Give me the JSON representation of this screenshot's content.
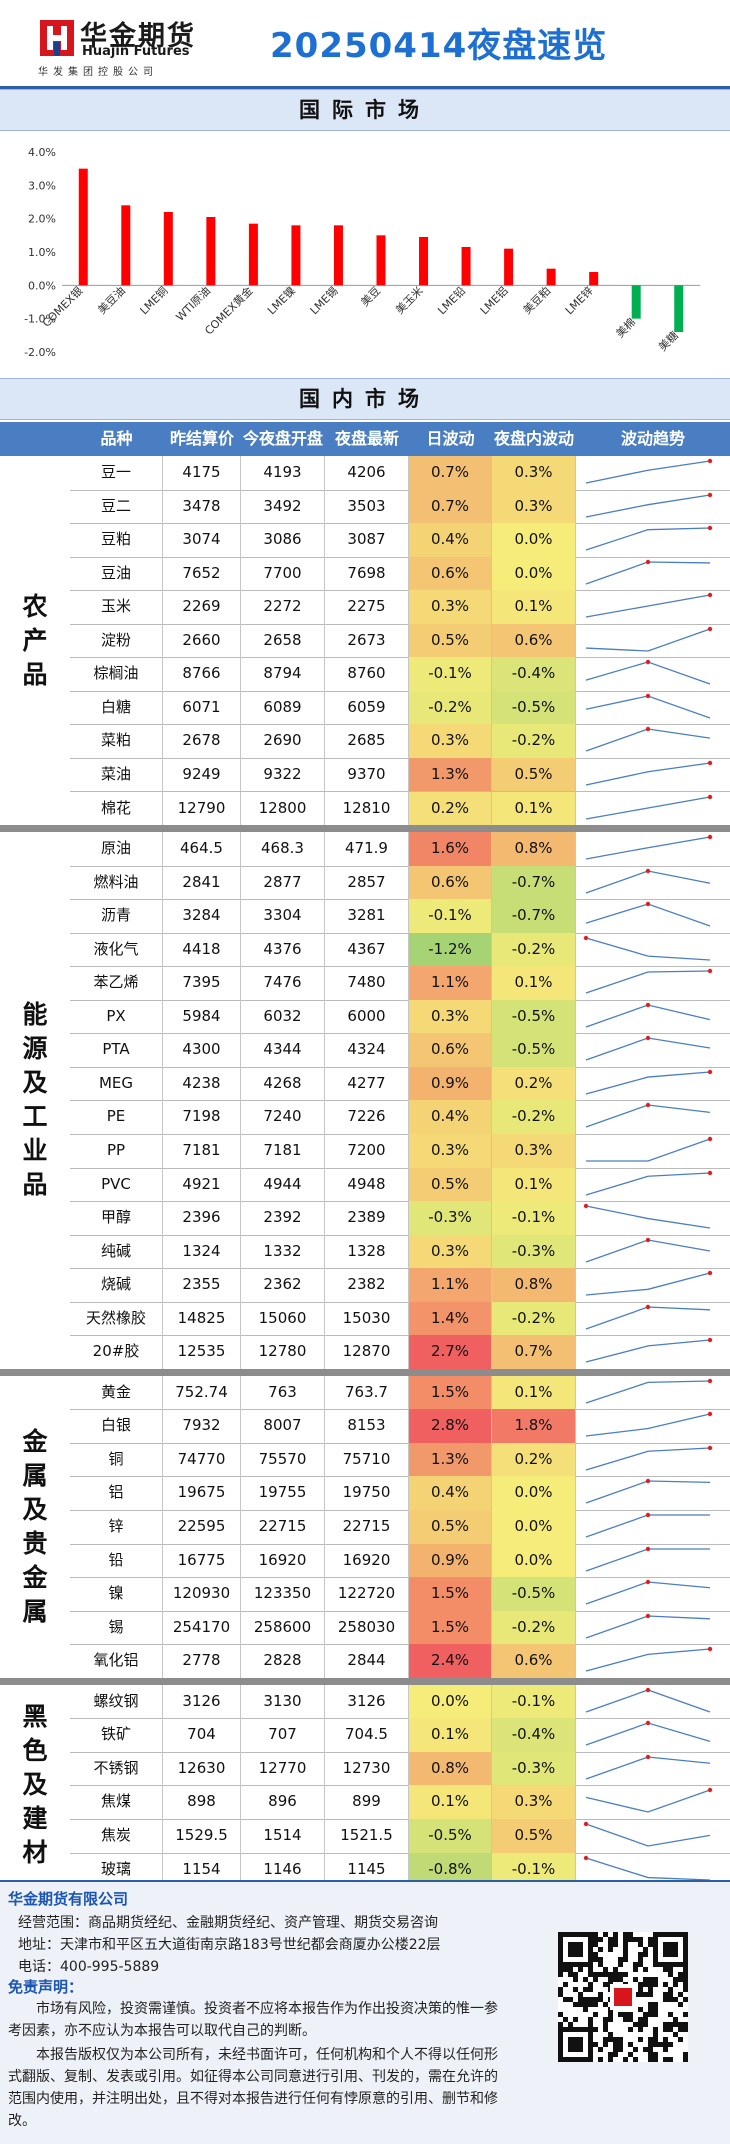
{
  "header": {
    "logo_cn": "华金期货",
    "logo_en": "Huajin Futures",
    "logo_sub": "华发集团控股公司",
    "title": "20250414夜盘速览"
  },
  "sections": {
    "international": "国际市场",
    "domestic": "国内市场"
  },
  "chart_data": {
    "type": "bar",
    "categories": [
      "COMEX银",
      "美豆油",
      "LME铜",
      "WTI原油",
      "COMEX黄金",
      "LME镍",
      "LME锡",
      "美豆",
      "美玉米",
      "LME铅",
      "LME铝",
      "美豆粕",
      "LME锌",
      "美棉",
      "美糖"
    ],
    "values": [
      3.5,
      2.4,
      2.2,
      2.05,
      1.85,
      1.8,
      1.8,
      1.5,
      1.45,
      1.15,
      1.1,
      0.5,
      0.4,
      -1.0,
      -1.4
    ],
    "yticks": [
      "4.0%",
      "3.0%",
      "2.0%",
      "1.0%",
      "0.0%",
      "-1.0%",
      "-2.0%"
    ],
    "ylim": [
      -2.0,
      4.0
    ],
    "colors": {
      "positive": "#ff0000",
      "negative": "#00b050"
    }
  },
  "table": {
    "headers": [
      "品种",
      "昨结算价",
      "今夜盘开盘",
      "夜盘最新",
      "日波动",
      "夜盘内波动",
      "波动趋势"
    ],
    "groups": [
      {
        "label": "农产品",
        "rows": [
          {
            "name": "豆一",
            "prev": "4175",
            "open": "4193",
            "last": "4206",
            "day": "0.7%",
            "night": "0.3%",
            "d": 0.7,
            "n": 0.3,
            "trend": [
              4175,
              4193,
              4206
            ]
          },
          {
            "name": "豆二",
            "prev": "3478",
            "open": "3492",
            "last": "3503",
            "day": "0.7%",
            "night": "0.3%",
            "d": 0.7,
            "n": 0.3,
            "trend": [
              3478,
              3492,
              3503
            ]
          },
          {
            "name": "豆粕",
            "prev": "3074",
            "open": "3086",
            "last": "3087",
            "day": "0.4%",
            "night": "0.0%",
            "d": 0.4,
            "n": 0.0,
            "trend": [
              3074,
              3086,
              3087
            ]
          },
          {
            "name": "豆油",
            "prev": "7652",
            "open": "7700",
            "last": "7698",
            "day": "0.6%",
            "night": "0.0%",
            "d": 0.6,
            "n": 0.0,
            "trend": [
              7652,
              7700,
              7698
            ]
          },
          {
            "name": "玉米",
            "prev": "2269",
            "open": "2272",
            "last": "2275",
            "day": "0.3%",
            "night": "0.1%",
            "d": 0.3,
            "n": 0.1,
            "trend": [
              2269,
              2272,
              2275
            ]
          },
          {
            "name": "淀粉",
            "prev": "2660",
            "open": "2658",
            "last": "2673",
            "day": "0.5%",
            "night": "0.6%",
            "d": 0.5,
            "n": 0.6,
            "trend": [
              2660,
              2658,
              2673
            ]
          },
          {
            "name": "棕榈油",
            "prev": "8766",
            "open": "8794",
            "last": "8760",
            "day": "-0.1%",
            "night": "-0.4%",
            "d": -0.1,
            "n": -0.4,
            "trend": [
              8766,
              8794,
              8760
            ]
          },
          {
            "name": "白糖",
            "prev": "6071",
            "open": "6089",
            "last": "6059",
            "day": "-0.2%",
            "night": "-0.5%",
            "d": -0.2,
            "n": -0.5,
            "trend": [
              6071,
              6089,
              6059
            ]
          },
          {
            "name": "菜粕",
            "prev": "2678",
            "open": "2690",
            "last": "2685",
            "day": "0.3%",
            "night": "-0.2%",
            "d": 0.3,
            "n": -0.2,
            "trend": [
              2678,
              2690,
              2685
            ]
          },
          {
            "name": "菜油",
            "prev": "9249",
            "open": "9322",
            "last": "9370",
            "day": "1.3%",
            "night": "0.5%",
            "d": 1.3,
            "n": 0.5,
            "trend": [
              9249,
              9322,
              9370
            ]
          },
          {
            "name": "棉花",
            "prev": "12790",
            "open": "12800",
            "last": "12810",
            "day": "0.2%",
            "night": "0.1%",
            "d": 0.2,
            "n": 0.1,
            "trend": [
              12790,
              12800,
              12810
            ]
          }
        ]
      },
      {
        "label": "能源及工业品",
        "rows": [
          {
            "name": "原油",
            "prev": "464.5",
            "open": "468.3",
            "last": "471.9",
            "day": "1.6%",
            "night": "0.8%",
            "d": 1.6,
            "n": 0.8,
            "trend": [
              464.5,
              468.3,
              471.9
            ]
          },
          {
            "name": "燃料油",
            "prev": "2841",
            "open": "2877",
            "last": "2857",
            "day": "0.6%",
            "night": "-0.7%",
            "d": 0.6,
            "n": -0.7,
            "trend": [
              2841,
              2877,
              2857
            ]
          },
          {
            "name": "沥青",
            "prev": "3284",
            "open": "3304",
            "last": "3281",
            "day": "-0.1%",
            "night": "-0.7%",
            "d": -0.1,
            "n": -0.7,
            "trend": [
              3284,
              3304,
              3281
            ]
          },
          {
            "name": "液化气",
            "prev": "4418",
            "open": "4376",
            "last": "4367",
            "day": "-1.2%",
            "night": "-0.2%",
            "d": -1.2,
            "n": -0.2,
            "trend": [
              4418,
              4376,
              4367
            ]
          },
          {
            "name": "苯乙烯",
            "prev": "7395",
            "open": "7476",
            "last": "7480",
            "day": "1.1%",
            "night": "0.1%",
            "d": 1.1,
            "n": 0.1,
            "trend": [
              7395,
              7476,
              7480
            ]
          },
          {
            "name": "PX",
            "prev": "5984",
            "open": "6032",
            "last": "6000",
            "day": "0.3%",
            "night": "-0.5%",
            "d": 0.3,
            "n": -0.5,
            "trend": [
              5984,
              6032,
              6000
            ]
          },
          {
            "name": "PTA",
            "prev": "4300",
            "open": "4344",
            "last": "4324",
            "day": "0.6%",
            "night": "-0.5%",
            "d": 0.6,
            "n": -0.5,
            "trend": [
              4300,
              4344,
              4324
            ]
          },
          {
            "name": "MEG",
            "prev": "4238",
            "open": "4268",
            "last": "4277",
            "day": "0.9%",
            "night": "0.2%",
            "d": 0.9,
            "n": 0.2,
            "trend": [
              4238,
              4268,
              4277
            ]
          },
          {
            "name": "PE",
            "prev": "7198",
            "open": "7240",
            "last": "7226",
            "day": "0.4%",
            "night": "-0.2%",
            "d": 0.4,
            "n": -0.2,
            "trend": [
              7198,
              7240,
              7226
            ]
          },
          {
            "name": "PP",
            "prev": "7181",
            "open": "7181",
            "last": "7200",
            "day": "0.3%",
            "night": "0.3%",
            "d": 0.3,
            "n": 0.3,
            "trend": [
              7181,
              7181,
              7200
            ]
          },
          {
            "name": "PVC",
            "prev": "4921",
            "open": "4944",
            "last": "4948",
            "day": "0.5%",
            "night": "0.1%",
            "d": 0.5,
            "n": 0.1,
            "trend": [
              4921,
              4944,
              4948
            ]
          },
          {
            "name": "甲醇",
            "prev": "2396",
            "open": "2392",
            "last": "2389",
            "day": "-0.3%",
            "night": "-0.1%",
            "d": -0.3,
            "n": -0.1,
            "trend": [
              2396,
              2392,
              2389
            ]
          },
          {
            "name": "纯碱",
            "prev": "1324",
            "open": "1332",
            "last": "1328",
            "day": "0.3%",
            "night": "-0.3%",
            "d": 0.3,
            "n": -0.3,
            "trend": [
              1324,
              1332,
              1328
            ]
          },
          {
            "name": "烧碱",
            "prev": "2355",
            "open": "2362",
            "last": "2382",
            "day": "1.1%",
            "night": "0.8%",
            "d": 1.1,
            "n": 0.8,
            "trend": [
              2355,
              2362,
              2382
            ]
          },
          {
            "name": "天然橡胶",
            "prev": "14825",
            "open": "15060",
            "last": "15030",
            "day": "1.4%",
            "night": "-0.2%",
            "d": 1.4,
            "n": -0.2,
            "trend": [
              14825,
              15060,
              15030
            ]
          },
          {
            "name": "20#胶",
            "prev": "12535",
            "open": "12780",
            "last": "12870",
            "day": "2.7%",
            "night": "0.7%",
            "d": 2.7,
            "n": 0.7,
            "trend": [
              12535,
              12780,
              12870
            ]
          }
        ]
      },
      {
        "label": "金属及贵金属",
        "rows": [
          {
            "name": "黄金",
            "prev": "752.74",
            "open": "763",
            "last": "763.7",
            "day": "1.5%",
            "night": "0.1%",
            "d": 1.5,
            "n": 0.1,
            "trend": [
              752.74,
              763,
              763.7
            ]
          },
          {
            "name": "白银",
            "prev": "7932",
            "open": "8007",
            "last": "8153",
            "day": "2.8%",
            "night": "1.8%",
            "d": 2.8,
            "n": 1.8,
            "trend": [
              7932,
              8007,
              8153
            ]
          },
          {
            "name": "铜",
            "prev": "74770",
            "open": "75570",
            "last": "75710",
            "day": "1.3%",
            "night": "0.2%",
            "d": 1.3,
            "n": 0.2,
            "trend": [
              74770,
              75570,
              75710
            ]
          },
          {
            "name": "铝",
            "prev": "19675",
            "open": "19755",
            "last": "19750",
            "day": "0.4%",
            "night": "0.0%",
            "d": 0.4,
            "n": 0.0,
            "trend": [
              19675,
              19755,
              19750
            ]
          },
          {
            "name": "锌",
            "prev": "22595",
            "open": "22715",
            "last": "22715",
            "day": "0.5%",
            "night": "0.0%",
            "d": 0.5,
            "n": 0.0,
            "trend": [
              22595,
              22715,
              22715
            ]
          },
          {
            "name": "铅",
            "prev": "16775",
            "open": "16920",
            "last": "16920",
            "day": "0.9%",
            "night": "0.0%",
            "d": 0.9,
            "n": 0.0,
            "trend": [
              16775,
              16920,
              16920
            ]
          },
          {
            "name": "镍",
            "prev": "120930",
            "open": "123350",
            "last": "122720",
            "day": "1.5%",
            "night": "-0.5%",
            "d": 1.5,
            "n": -0.5,
            "trend": [
              120930,
              123350,
              122720
            ]
          },
          {
            "name": "锡",
            "prev": "254170",
            "open": "258600",
            "last": "258030",
            "day": "1.5%",
            "night": "-0.2%",
            "d": 1.5,
            "n": -0.2,
            "trend": [
              254170,
              258600,
              258030
            ]
          },
          {
            "name": "氧化铝",
            "prev": "2778",
            "open": "2828",
            "last": "2844",
            "day": "2.4%",
            "night": "0.6%",
            "d": 2.4,
            "n": 0.6,
            "trend": [
              2778,
              2828,
              2844
            ]
          }
        ]
      },
      {
        "label": "黑色及建材",
        "rows": [
          {
            "name": "螺纹钢",
            "prev": "3126",
            "open": "3130",
            "last": "3126",
            "day": "0.0%",
            "night": "-0.1%",
            "d": 0.0,
            "n": -0.1,
            "trend": [
              3126,
              3130,
              3126
            ]
          },
          {
            "name": "铁矿",
            "prev": "704",
            "open": "707",
            "last": "704.5",
            "day": "0.1%",
            "night": "-0.4%",
            "d": 0.1,
            "n": -0.4,
            "trend": [
              704,
              707,
              704.5
            ]
          },
          {
            "name": "不锈钢",
            "prev": "12630",
            "open": "12770",
            "last": "12730",
            "day": "0.8%",
            "night": "-0.3%",
            "d": 0.8,
            "n": -0.3,
            "trend": [
              12630,
              12770,
              12730
            ]
          },
          {
            "name": "焦煤",
            "prev": "898",
            "open": "896",
            "last": "899",
            "day": "0.1%",
            "night": "0.3%",
            "d": 0.1,
            "n": 0.3,
            "trend": [
              898,
              896,
              899
            ]
          },
          {
            "name": "焦炭",
            "prev": "1529.5",
            "open": "1514",
            "last": "1521.5",
            "day": "-0.5%",
            "night": "0.5%",
            "d": -0.5,
            "n": 0.5,
            "trend": [
              1529.5,
              1514,
              1521.5
            ]
          },
          {
            "name": "玻璃",
            "prev": "1154",
            "open": "1146",
            "last": "1145",
            "day": "-0.8%",
            "night": "-0.1%",
            "d": -0.8,
            "n": -0.1,
            "trend": [
              1154,
              1146,
              1145
            ]
          }
        ]
      }
    ]
  },
  "footer": {
    "company": "华金期货有限公司",
    "scope": "经营范围：商品期货经纪、金融期货经纪、资产管理、期货交易咨询",
    "address": "地址：天津市和平区五大道街南京路183号世纪都会商厦办公楼22层",
    "phone": "电话：400-995-5889",
    "disclaimer_title": "免责声明：",
    "disclaimer_1": "市场有风险，投资需谨慎。投资者不应将本报告作为作出投资决策的惟一参考因素，亦不应认为本报告可以取代自己的判断。",
    "disclaimer_2": "本报告版权仅为本公司所有，未经书面许可，任何机构和个人不得以任何形式翻版、复制、发表或引用。如征得本公司同意进行引用、刊发的，需在允许的范围内使用，并注明出处，且不得对本报告进行任何有悖原意的引用、删节和修改。"
  }
}
